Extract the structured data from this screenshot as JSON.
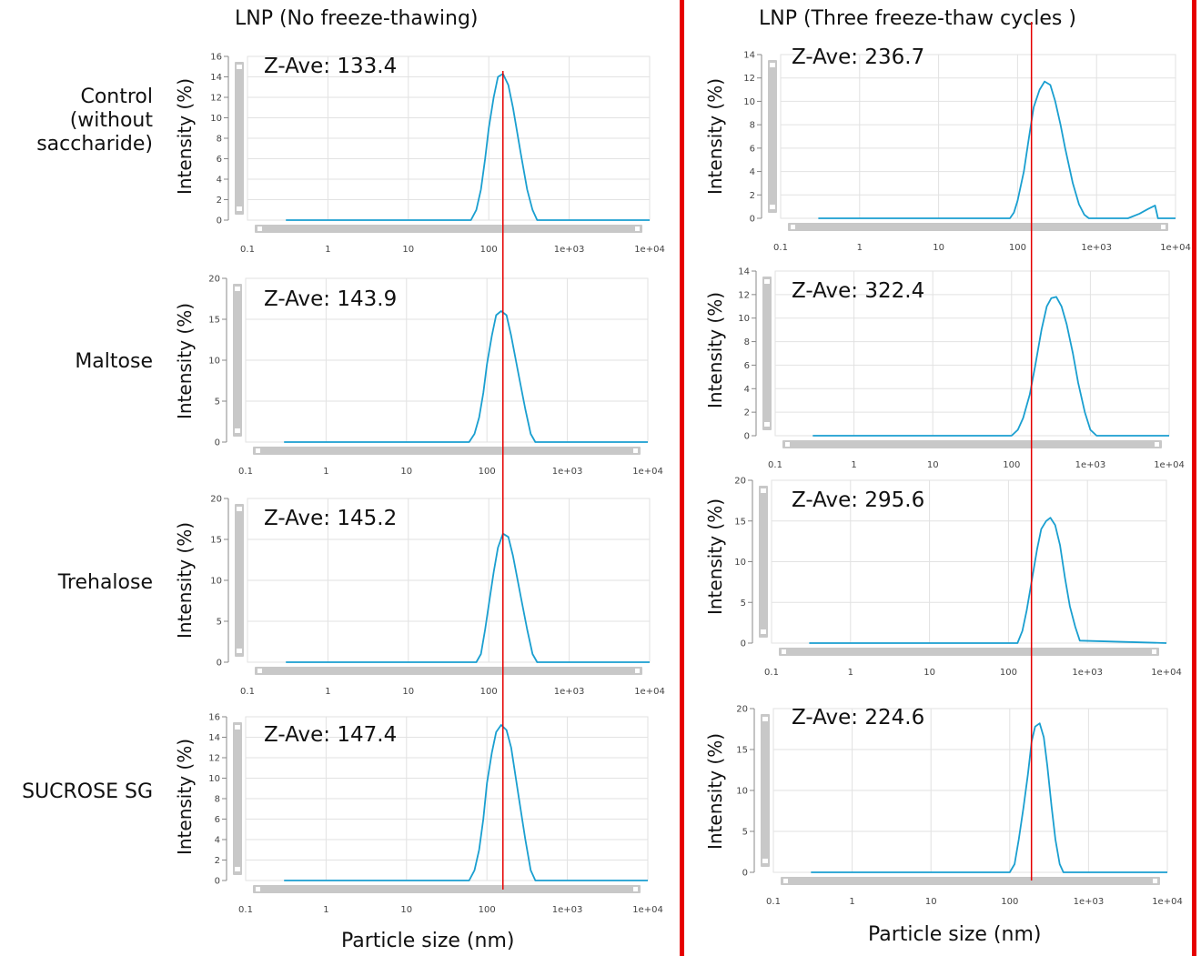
{
  "col_titles": [
    "LNP  (No freeze-thawing)",
    "LNP  (Three freeze-thaw cycles )"
  ],
  "row_labels": [
    "Control\n(without\nsaccharide)",
    "Maltose",
    "Trehalose",
    "SUCROSE SG"
  ],
  "xlabel": "Particle size (nm)",
  "ylabel": "Intensity  (%)",
  "colors": {
    "curve": "#1a9fd0",
    "marker": "#e60000",
    "frame": "#e60000",
    "grid": "#e2e2e2",
    "scrollbar": "#c8c8c8"
  },
  "x_ticks": [
    "0.1",
    "1",
    "10",
    "100",
    "1e+03",
    "1e+04"
  ],
  "chart_data": [
    {
      "type": "line",
      "panel": "left-control",
      "z_ave_label": "Z-Ave: 133.4",
      "z_ave": 133.4,
      "x_scale": "log",
      "xlim": [
        0.1,
        10000
      ],
      "ylim": [
        0,
        16
      ],
      "yticks": [
        0,
        2,
        4,
        6,
        8,
        10,
        12,
        14,
        16
      ],
      "x": [
        0.3,
        60,
        70,
        80,
        90,
        100,
        115,
        130,
        150,
        175,
        200,
        250,
        300,
        350,
        400,
        10000
      ],
      "y": [
        0,
        0,
        1,
        3,
        6,
        9,
        12,
        14,
        14.3,
        13.2,
        11,
        6.5,
        3,
        1,
        0,
        0
      ]
    },
    {
      "type": "line",
      "panel": "left-maltose",
      "z_ave_label": "Z-Ave: 143.9",
      "z_ave": 143.9,
      "x_scale": "log",
      "xlim": [
        0.1,
        10000
      ],
      "ylim": [
        0,
        20
      ],
      "yticks": [
        0,
        5,
        10,
        15,
        20
      ],
      "x": [
        0.3,
        60,
        70,
        80,
        90,
        100,
        115,
        130,
        150,
        175,
        200,
        250,
        300,
        350,
        400,
        10000
      ],
      "y": [
        0,
        0,
        1,
        3,
        6,
        9.5,
        13,
        15.5,
        16,
        15.5,
        13,
        8,
        4,
        1,
        0,
        0
      ]
    },
    {
      "type": "line",
      "panel": "left-trehalose",
      "z_ave_label": "Z-Ave: 145.2",
      "z_ave": 145.2,
      "x_scale": "log",
      "xlim": [
        0.1,
        10000
      ],
      "ylim": [
        0,
        20
      ],
      "yticks": [
        0,
        5,
        10,
        15,
        20
      ],
      "x": [
        0.3,
        70,
        80,
        90,
        100,
        115,
        130,
        150,
        175,
        200,
        250,
        300,
        350,
        400,
        10000
      ],
      "y": [
        0,
        0,
        1,
        4,
        7,
        11,
        14,
        15.7,
        15.3,
        13,
        8,
        4,
        1,
        0,
        0
      ]
    },
    {
      "type": "line",
      "panel": "left-sucrose",
      "z_ave_label": "Z-Ave: 147.4",
      "z_ave": 147.4,
      "x_scale": "log",
      "xlim": [
        0.1,
        10000
      ],
      "ylim": [
        0,
        16
      ],
      "yticks": [
        0,
        2,
        4,
        6,
        8,
        10,
        12,
        14,
        16
      ],
      "x": [
        0.3,
        60,
        70,
        80,
        90,
        100,
        115,
        130,
        150,
        175,
        200,
        250,
        300,
        350,
        400,
        10000
      ],
      "y": [
        0,
        0,
        1,
        3,
        6,
        9.5,
        12.5,
        14.5,
        15.2,
        14.7,
        13,
        8,
        4,
        1,
        0,
        0
      ]
    },
    {
      "type": "line",
      "panel": "right-control",
      "z_ave_label": "Z-Ave: 236.7",
      "z_ave": 236.7,
      "x_scale": "log",
      "xlim": [
        0.1,
        10000
      ],
      "ylim": [
        0,
        14
      ],
      "yticks": [
        0,
        2,
        4,
        6,
        8,
        10,
        12,
        14
      ],
      "x": [
        0.3,
        80,
        90,
        100,
        120,
        140,
        160,
        190,
        220,
        260,
        300,
        350,
        400,
        500,
        600,
        700,
        800,
        1000,
        1500,
        2500,
        3500,
        4500,
        5500,
        6000,
        7000,
        10000
      ],
      "y": [
        0,
        0,
        0.5,
        1.5,
        4,
        7,
        9.5,
        11,
        11.7,
        11.4,
        10,
        8,
        6,
        3,
        1.2,
        0.3,
        0,
        0,
        0,
        0,
        0.4,
        0.8,
        1.1,
        0,
        0,
        0
      ]
    },
    {
      "type": "line",
      "panel": "right-maltose",
      "z_ave_label": "Z-Ave: 322.4",
      "z_ave": 322.4,
      "x_scale": "log",
      "xlim": [
        0.1,
        10000
      ],
      "ylim": [
        0,
        14
      ],
      "yticks": [
        0,
        2,
        4,
        6,
        8,
        10,
        12,
        14
      ],
      "x": [
        0.3,
        100,
        120,
        140,
        170,
        200,
        240,
        280,
        320,
        370,
        430,
        500,
        600,
        700,
        850,
        1000,
        1200,
        10000
      ],
      "y": [
        0,
        0,
        0.5,
        1.5,
        3.5,
        6,
        9,
        11,
        11.7,
        11.8,
        11,
        9.5,
        7,
        4.5,
        2,
        0.5,
        0,
        0
      ]
    },
    {
      "type": "line",
      "panel": "right-trehalose",
      "z_ave_label": "Z-Ave: 295.6",
      "z_ave": 295.6,
      "x_scale": "log",
      "xlim": [
        0.1,
        10000
      ],
      "ylim": [
        0,
        20
      ],
      "yticks": [
        0,
        5,
        10,
        15,
        20
      ],
      "x": [
        0.3,
        130,
        150,
        170,
        200,
        230,
        260,
        300,
        340,
        390,
        450,
        520,
        600,
        700,
        800,
        10000
      ],
      "y": [
        0,
        0,
        1.5,
        4,
        8,
        11.5,
        14,
        15,
        15.4,
        14.5,
        12,
        8,
        4.5,
        2,
        0.3,
        0
      ]
    },
    {
      "type": "line",
      "panel": "right-sucrose",
      "z_ave_label": "Z-Ave: 224.6",
      "z_ave": 224.6,
      "x_scale": "log",
      "xlim": [
        0.1,
        10000
      ],
      "ylim": [
        0,
        20
      ],
      "yticks": [
        0,
        5,
        10,
        15,
        20
      ],
      "x": [
        0.3,
        100,
        115,
        130,
        150,
        170,
        190,
        210,
        240,
        270,
        300,
        340,
        380,
        430,
        480,
        10000
      ],
      "y": [
        0,
        0,
        1,
        4,
        8,
        12,
        16,
        17.8,
        18.2,
        16.5,
        13,
        8,
        4,
        1,
        0,
        0
      ]
    }
  ]
}
